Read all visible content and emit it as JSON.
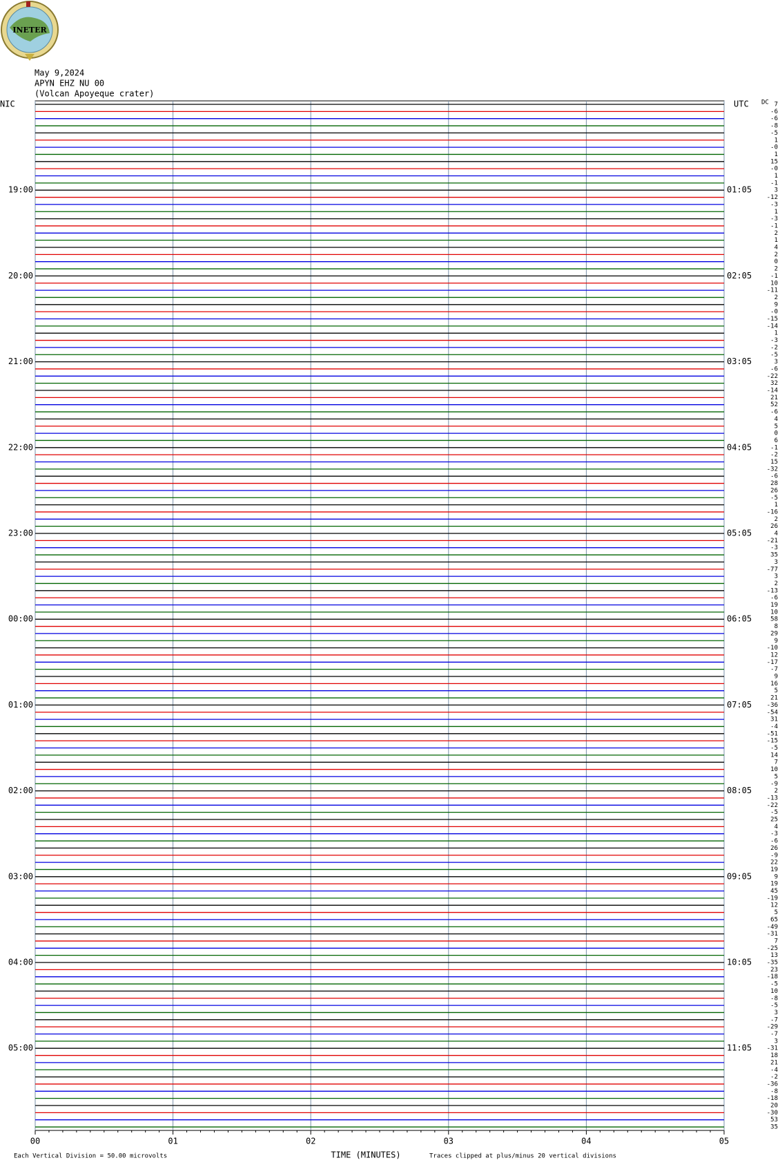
{
  "logo_text": "INETER",
  "header": {
    "date": "May 9,2024",
    "station": "APYN EHZ NU 00",
    "location": "(Volcan Apoyeque crater)"
  },
  "chart_data": {
    "type": "helicorder",
    "left_zone": "NIC",
    "right_zone": "UTC",
    "dc_title": "DC",
    "left_labels": [
      "19:00",
      "20:00",
      "21:00",
      "22:00",
      "23:00",
      "00:00",
      "01:00",
      "02:00",
      "03:00",
      "04:00",
      "05:00"
    ],
    "right_labels": [
      "01:05",
      "02:05",
      "03:05",
      "04:05",
      "05:05",
      "06:05",
      "07:05",
      "08:05",
      "09:05",
      "10:05",
      "11:05"
    ],
    "dc": [
      "7",
      "-6",
      "-6",
      "-8",
      "-5",
      "1",
      "-0",
      "1",
      "15",
      "-0",
      "1",
      "-1",
      "3",
      "-12",
      "-3",
      "1",
      "-3",
      "-1",
      "2",
      "1",
      "4",
      "2",
      "0",
      "2",
      "-1",
      "10",
      "-11",
      "2",
      "9",
      "-0",
      "-15",
      "-14",
      "1",
      "-3",
      "-2",
      "-5",
      "3",
      "-6",
      "-22",
      "32",
      "-14",
      "21",
      "52",
      "-6",
      "4",
      "5",
      "0",
      "6",
      "-1",
      "-2",
      "15",
      "-32",
      "-6",
      "28",
      "26",
      "-5",
      "1",
      "-16",
      "2",
      "26",
      "4",
      "-21",
      "-3",
      "35",
      "3",
      "-77",
      "3",
      "2",
      "-13",
      "-6",
      "19",
      "10",
      "58",
      "8",
      "29",
      "9",
      "-10",
      "12",
      "-17",
      "-7",
      "9",
      "16",
      "5",
      "21",
      "-36",
      "-54",
      "31",
      "-4",
      "-51",
      "-15",
      "-5",
      "14",
      "7",
      "10",
      "5",
      "-9",
      "2",
      "-13",
      "-22",
      "-5",
      "25",
      "4",
      "-3",
      "-6",
      "26",
      "-9",
      "22",
      "19",
      "9",
      "19",
      "45",
      "-19",
      "12",
      "5",
      "65",
      "-49",
      "-31",
      "7",
      "-25",
      "13",
      "-35",
      "23",
      "-18",
      "-5",
      "10",
      "-8",
      "-5",
      "3",
      "-7",
      "-29",
      "-7",
      "3",
      "-31",
      "18",
      "21",
      "-4",
      "-2",
      "-36",
      "-8",
      "-18",
      "20",
      "-30",
      "53",
      "35"
    ],
    "trace_colors": [
      "#000000",
      "#e00000",
      "#0000e0",
      "#006400"
    ],
    "xlim": [
      0,
      5
    ],
    "xticks": [
      {
        "value": 0,
        "label": "00"
      },
      {
        "value": 1,
        "label": "01"
      },
      {
        "value": 2,
        "label": "02"
      },
      {
        "value": 3,
        "label": "03"
      },
      {
        "value": 4,
        "label": "04"
      },
      {
        "value": 5,
        "label": "05"
      }
    ],
    "xlabel": "TIME (MINUTES)",
    "scale_note": "Each Vertical Division =   50.00 microvolts",
    "clip_note": "Traces clipped at plus/minus 20 vertical divisions"
  }
}
